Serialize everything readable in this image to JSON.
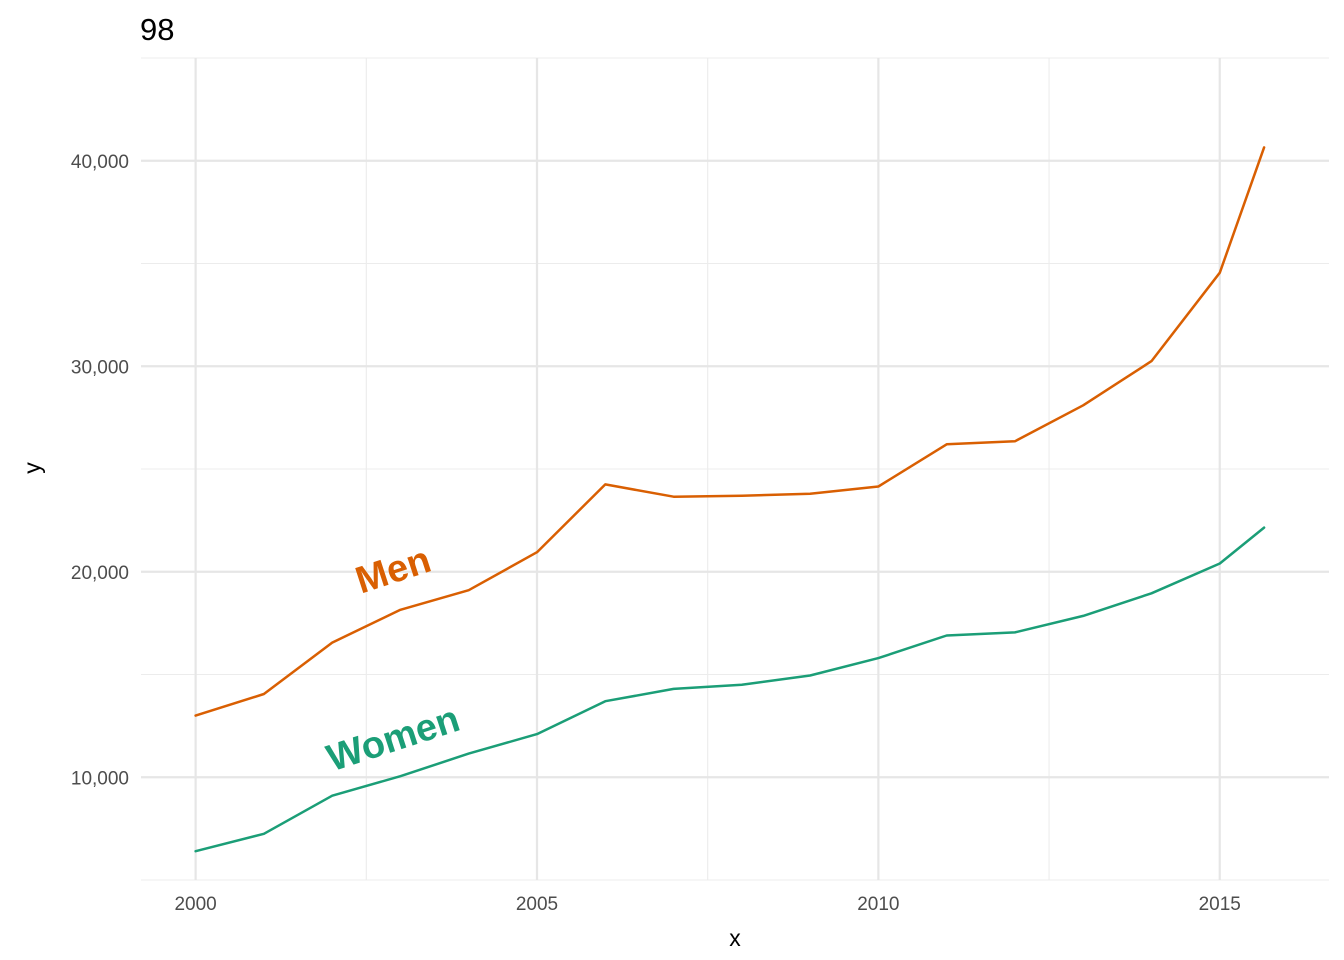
{
  "chart_data": {
    "type": "line",
    "title": "98",
    "xlabel": "x",
    "ylabel": "y",
    "xlim": [
      1999.2,
      2016.6
    ],
    "ylim": [
      5000,
      45000
    ],
    "x_ticks": [
      2000,
      2005,
      2010,
      2015
    ],
    "x_tick_labels": [
      "2000",
      "2005",
      "2010",
      "2015"
    ],
    "y_ticks": [
      10000,
      20000,
      30000,
      40000
    ],
    "y_tick_labels": [
      "10,000",
      "20,000",
      "30,000",
      "40,000"
    ],
    "grid": true,
    "legend": "none",
    "x": [
      2000,
      2001,
      2002,
      2003,
      2004,
      2005,
      2006,
      2007,
      2008,
      2009,
      2010,
      2011,
      2012,
      2013,
      2014,
      2015,
      2015.65
    ],
    "series": [
      {
        "name": "Men",
        "color": "#d95f02",
        "values": [
          13000,
          14050,
          16550,
          18150,
          19100,
          20950,
          24250,
          23650,
          23700,
          23800,
          24150,
          26200,
          26350,
          28100,
          30250,
          34550,
          40650
        ],
        "label_anchor": [
          2002.95,
          19500
        ],
        "label_angle": -18
      },
      {
        "name": "Women",
        "color": "#1b9e77",
        "values": [
          6400,
          7250,
          9100,
          10050,
          11150,
          12100,
          13700,
          14300,
          14500,
          14950,
          15800,
          16900,
          17050,
          17850,
          18950,
          20400,
          22150
        ],
        "label_anchor": [
          2002.95,
          11300
        ],
        "label_angle": -18
      }
    ]
  }
}
